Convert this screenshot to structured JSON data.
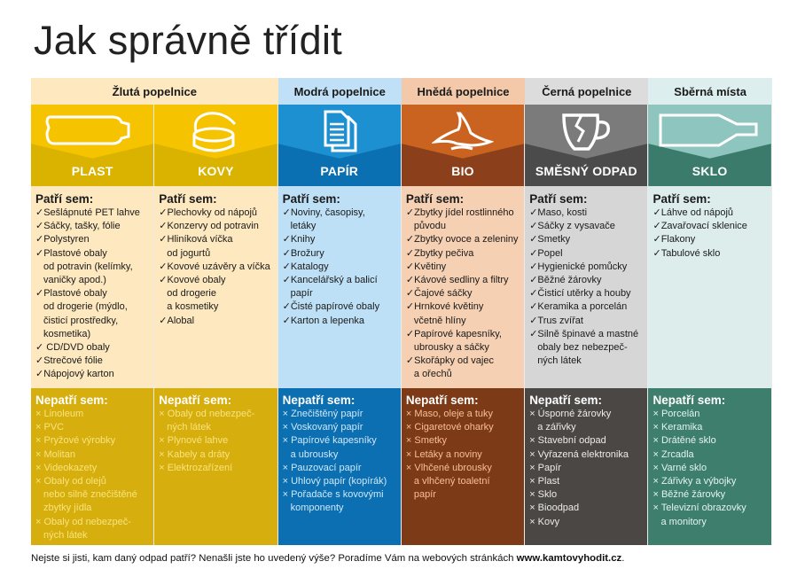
{
  "title": "Jak správně třídit",
  "groups": [
    {
      "header": "Žlutá popelnice",
      "header_bg": "#fde8bf",
      "columns": [
        {
          "label": "PLAST",
          "icon": "bottle-icon",
          "top": "#f5c300",
          "low": "#d9b300",
          "body": "#fde8bf",
          "no_bg": "#d6ae0e",
          "no_text": "#f9e47c",
          "yes_title": "Patří sem:",
          "yes": [
            "Sešlápnuté PET lahve",
            "Sáčky, tašky, fólie",
            "Polystyren",
            "Plastové obaly\nod potravin (kelímky,\nvaničky apod.)",
            "Plastové obaly\nod drogerie (mýdlo,\nčisticí prostředky,\nkosmetika)",
            " CD/DVD obaly",
            "Strečové fólie",
            "Nápojový karton"
          ],
          "no_title": "Nepatří sem:",
          "no": [
            "Linoleum",
            "PVC",
            "Pryžové výrobky",
            "Molitan",
            "Videokazety",
            "Obaly od olejů\nnebo silně znečištěné\nzbytky jídla",
            "Obaly od nebezpeč-\nných látek"
          ]
        },
        {
          "label": "KOVY",
          "icon": "can-icon",
          "top": "#f5c300",
          "low": "#d9b300",
          "body": "#fde8bf",
          "no_bg": "#d6ae0e",
          "no_text": "#f9e47c",
          "yes_title": "Patří sem:",
          "yes": [
            "Plechovky od nápojů",
            "Konzervy od potravin",
            "Hliníková víčka\nod jogurtů",
            "Kovové uzávěry a víčka",
            "Kovové obaly\nod drogerie\na kosmetiky",
            "Alobal"
          ],
          "no_title": "Nepatří sem:",
          "no": [
            "Obaly od nebezpeč-\nných látek",
            "Plynové lahve",
            "Kabely a dráty",
            "Elektrozařízení"
          ]
        }
      ]
    },
    {
      "header": "Modrá popelnice",
      "header_bg": "#bfe0f6",
      "columns": [
        {
          "label": "PAPÍR",
          "icon": "document-icon",
          "top": "#1d90d2",
          "low": "#0b70b2",
          "body": "#bde0f6",
          "no_bg": "#0b6fb1",
          "no_text": "#cfe9fb",
          "yes_title": "Patří sem:",
          "yes": [
            "Noviny, časopisy,\nletáky",
            "Knihy",
            "Brožury",
            "Katalogy",
            "Kancelářský a balicí\npapír",
            "Čisté papírové obaly",
            "Karton a lepenka"
          ],
          "no_title": "Nepatří sem:",
          "no": [
            "Znečištěný papír",
            "Voskovaný papír",
            "Papírové kapesníky\na ubrousky",
            "Pauzovací papír",
            "Uhlový papír (kopírák)",
            "Pořadače s kovovými\nkomponenty"
          ]
        }
      ]
    },
    {
      "header": "Hnědá popelnice",
      "header_bg": "#f4c9aa",
      "columns": [
        {
          "label": "BIO",
          "icon": "banana-peel-icon",
          "top": "#c9631f",
          "low": "#8b3f1a",
          "body": "#f6d0b3",
          "no_bg": "#7d3a17",
          "no_text": "#f6bf94",
          "yes_title": "Patří sem:",
          "yes": [
            "Zbytky jídel rostlinného\npůvodu",
            "Zbytky ovoce a zeleniny",
            "Zbytky pečiva",
            "Květiny",
            "Kávové sedliny a filtry",
            "Čajové sáčky",
            "Hrnkové květiny\nvčetně hlíny",
            "Papírové kapesníky,\nubrousky a sáčky",
            "Skořápky od vajec\na ořechů"
          ],
          "no_title": "Nepatří sem:",
          "no": [
            "Maso, oleje a tuky",
            "Cigaretové oharky",
            "Smetky",
            "Letáky a noviny",
            "Vlhčené ubrousky\na vlhčený toaletní\npapír"
          ]
        }
      ]
    },
    {
      "header": "Černá popelnice",
      "header_bg": "#dcdcdc",
      "columns": [
        {
          "label": "SMĚSNÝ ODPAD",
          "icon": "broken-cup-icon",
          "top": "#7b7b7b",
          "low": "#4b4b4b",
          "body": "#d6d6d6",
          "no_bg": "#4a4744",
          "no_text": "#ececec",
          "yes_title": "Patří sem:",
          "yes": [
            "Maso, kosti",
            "Sáčky z vysavače",
            "Smetky",
            "Popel",
            "Hygienické pomůcky",
            "Běžné žárovky",
            "Čisticí utěrky a houby",
            "Keramika a porcelán",
            "Trus zvířat",
            "Silně špinavé a mastné\nobaly bez nebezpeč-\nných látek"
          ],
          "no_title": "Nepatří sem:",
          "no": [
            "Úsporné žárovky\na zářivky",
            "Stavební odpad",
            "Vyřazená elektronika",
            "Papír",
            "Plast",
            "Sklo",
            "Bioodpad",
            "Kovy"
          ]
        }
      ]
    },
    {
      "header": "Sběrná místa",
      "header_bg": "#dcefee",
      "columns": [
        {
          "label": "SKLO",
          "icon": "glass-bottle-icon",
          "top": "#8fc5bf",
          "low": "#3b7b6b",
          "body": "#dcedec",
          "no_bg": "#3d7e6c",
          "no_text": "#e4f4f1",
          "yes_title": "Patří sem:",
          "yes": [
            "Láhve od nápojů",
            "Zavařovací sklenice",
            "Flakony",
            "Tabulové sklo"
          ],
          "no_title": "Nepatří sem:",
          "no": [
            "Porcelán",
            "Keramika",
            "Drátěné sklo",
            "Zrcadla",
            "Varné sklo",
            "Zářivky a výbojky",
            "Běžné žárovky",
            "Televizní obrazovky\na monitory"
          ]
        }
      ]
    }
  ],
  "footer": {
    "text": "Nejste si jisti, kam daný odpad patří? Nenašli jste ho uvedený výše? Poradíme Vám na webových stránkách ",
    "link": "www.kamtovyhodit.cz",
    "end": "."
  },
  "marks": {
    "yes": "✓",
    "no": "×"
  }
}
